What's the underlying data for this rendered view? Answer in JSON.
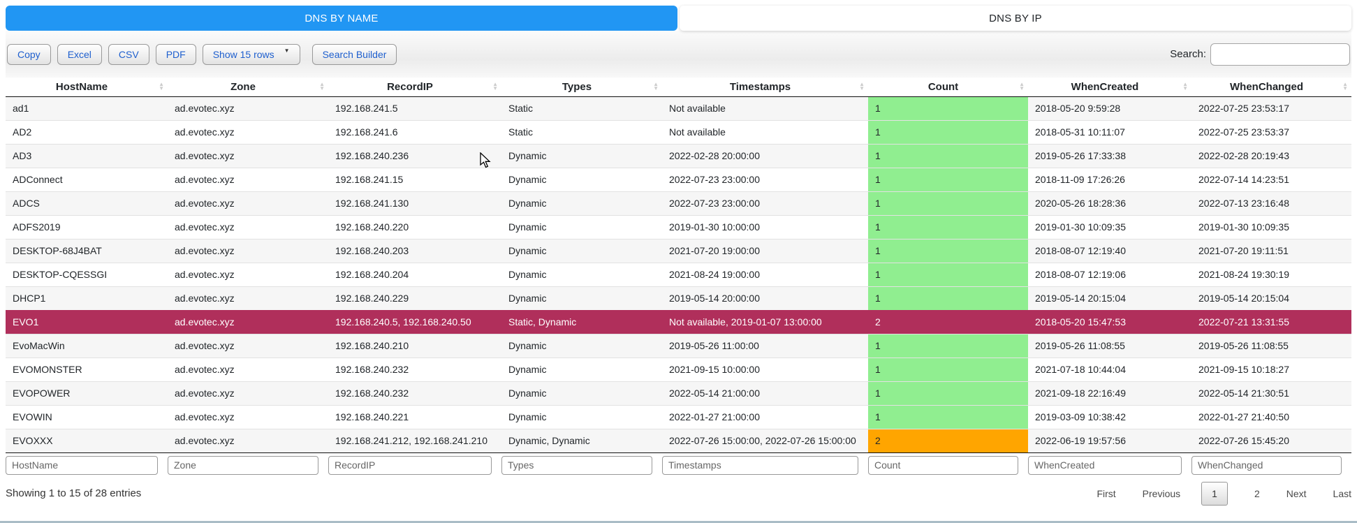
{
  "tabs": [
    {
      "label": "DNS BY NAME",
      "active": true
    },
    {
      "label": "DNS BY IP",
      "active": false
    }
  ],
  "toolbar": {
    "buttons": [
      "Copy",
      "Excel",
      "CSV",
      "PDF"
    ],
    "page_length_label": "Show 15 rows",
    "page_length_caret": "▼",
    "search_builder_label": "Search Builder",
    "search_label": "Search:",
    "search_value": ""
  },
  "table": {
    "columns": [
      "HostName",
      "Zone",
      "RecordIP",
      "Types",
      "Timestamps",
      "Count",
      "WhenCreated",
      "WhenChanged"
    ],
    "rows": [
      {
        "cells": [
          "ad1",
          "ad.evotec.xyz",
          "192.168.241.5",
          "Static",
          "Not available",
          "1",
          "2018-05-20 9:59:28",
          "2022-07-25 23:53:17"
        ],
        "count_style": "green",
        "highlighted": false
      },
      {
        "cells": [
          "AD2",
          "ad.evotec.xyz",
          "192.168.241.6",
          "Static",
          "Not available",
          "1",
          "2018-05-31 10:11:07",
          "2022-07-25 23:53:37"
        ],
        "count_style": "green",
        "highlighted": false
      },
      {
        "cells": [
          "AD3",
          "ad.evotec.xyz",
          "192.168.240.236",
          "Dynamic",
          "2022-02-28 20:00:00",
          "1",
          "2019-05-26 17:33:38",
          "2022-02-28 20:19:43"
        ],
        "count_style": "green",
        "highlighted": false
      },
      {
        "cells": [
          "ADConnect",
          "ad.evotec.xyz",
          "192.168.241.15",
          "Dynamic",
          "2022-07-23 23:00:00",
          "1",
          "2018-11-09 17:26:26",
          "2022-07-14 14:23:51"
        ],
        "count_style": "green",
        "highlighted": false
      },
      {
        "cells": [
          "ADCS",
          "ad.evotec.xyz",
          "192.168.241.130",
          "Dynamic",
          "2022-07-23 23:00:00",
          "1",
          "2020-05-26 18:28:36",
          "2022-07-13 23:16:48"
        ],
        "count_style": "green",
        "highlighted": false
      },
      {
        "cells": [
          "ADFS2019",
          "ad.evotec.xyz",
          "192.168.240.220",
          "Dynamic",
          "2019-01-30 10:00:00",
          "1",
          "2019-01-30 10:09:35",
          "2019-01-30 10:09:35"
        ],
        "count_style": "green",
        "highlighted": false
      },
      {
        "cells": [
          "DESKTOP-68J4BAT",
          "ad.evotec.xyz",
          "192.168.240.203",
          "Dynamic",
          "2021-07-20 19:00:00",
          "1",
          "2018-08-07 12:19:40",
          "2021-07-20 19:11:51"
        ],
        "count_style": "green",
        "highlighted": false
      },
      {
        "cells": [
          "DESKTOP-CQESSGI",
          "ad.evotec.xyz",
          "192.168.240.204",
          "Dynamic",
          "2021-08-24 19:00:00",
          "1",
          "2018-08-07 12:19:06",
          "2021-08-24 19:30:19"
        ],
        "count_style": "green",
        "highlighted": false
      },
      {
        "cells": [
          "DHCP1",
          "ad.evotec.xyz",
          "192.168.240.229",
          "Dynamic",
          "2019-05-14 20:00:00",
          "1",
          "2019-05-14 20:15:04",
          "2019-05-14 20:15:04"
        ],
        "count_style": "green",
        "highlighted": false
      },
      {
        "cells": [
          "EVO1",
          "ad.evotec.xyz",
          "192.168.240.5, 192.168.240.50",
          "Static, Dynamic",
          "Not available, 2019-01-07 13:00:00",
          "2",
          "2018-05-20 15:47:53",
          "2022-07-21 13:31:55"
        ],
        "count_style": "none",
        "highlighted": true
      },
      {
        "cells": [
          "EvoMacWin",
          "ad.evotec.xyz",
          "192.168.240.210",
          "Dynamic",
          "2019-05-26 11:00:00",
          "1",
          "2019-05-26 11:08:55",
          "2019-05-26 11:08:55"
        ],
        "count_style": "green",
        "highlighted": false
      },
      {
        "cells": [
          "EVOMONSTER",
          "ad.evotec.xyz",
          "192.168.240.232",
          "Dynamic",
          "2021-09-15 10:00:00",
          "1",
          "2021-07-18 10:44:04",
          "2021-09-15 10:18:27"
        ],
        "count_style": "green",
        "highlighted": false
      },
      {
        "cells": [
          "EVOPOWER",
          "ad.evotec.xyz",
          "192.168.240.232",
          "Dynamic",
          "2022-05-14 21:00:00",
          "1",
          "2021-09-18 22:16:49",
          "2022-05-14 21:30:51"
        ],
        "count_style": "green",
        "highlighted": false
      },
      {
        "cells": [
          "EVOWIN",
          "ad.evotec.xyz",
          "192.168.240.221",
          "Dynamic",
          "2022-01-27 21:00:00",
          "1",
          "2019-03-09 10:38:42",
          "2022-01-27 21:40:50"
        ],
        "count_style": "green",
        "highlighted": false
      },
      {
        "cells": [
          "EVOXXX",
          "ad.evotec.xyz",
          "192.168.241.212, 192.168.241.210",
          "Dynamic, Dynamic",
          "2022-07-26 15:00:00, 2022-07-26 15:00:00",
          "2",
          "2022-06-19 19:57:56",
          "2022-07-26 15:45:20"
        ],
        "count_style": "orange",
        "highlighted": false
      }
    ]
  },
  "filters": {
    "placeholders": [
      "HostName",
      "Zone",
      "RecordIP",
      "Types",
      "Timestamps",
      "Count",
      "WhenCreated",
      "WhenChanged"
    ]
  },
  "footer": {
    "info": "Showing 1 to 15 of 28 entries",
    "pagination": [
      {
        "label": "First",
        "current": false
      },
      {
        "label": "Previous",
        "current": false
      },
      {
        "label": "1",
        "current": true
      },
      {
        "label": "2",
        "current": false
      },
      {
        "label": "Next",
        "current": false
      },
      {
        "label": "Last",
        "current": false
      }
    ]
  },
  "colors": {
    "tab_active_bg": "#2196f3",
    "button_text": "#1e5fce",
    "count_green": "#90ee90",
    "count_orange": "#ffa500",
    "highlight_row_bg": "#b02f5b",
    "bottom_bar": "#a9bcc6"
  }
}
